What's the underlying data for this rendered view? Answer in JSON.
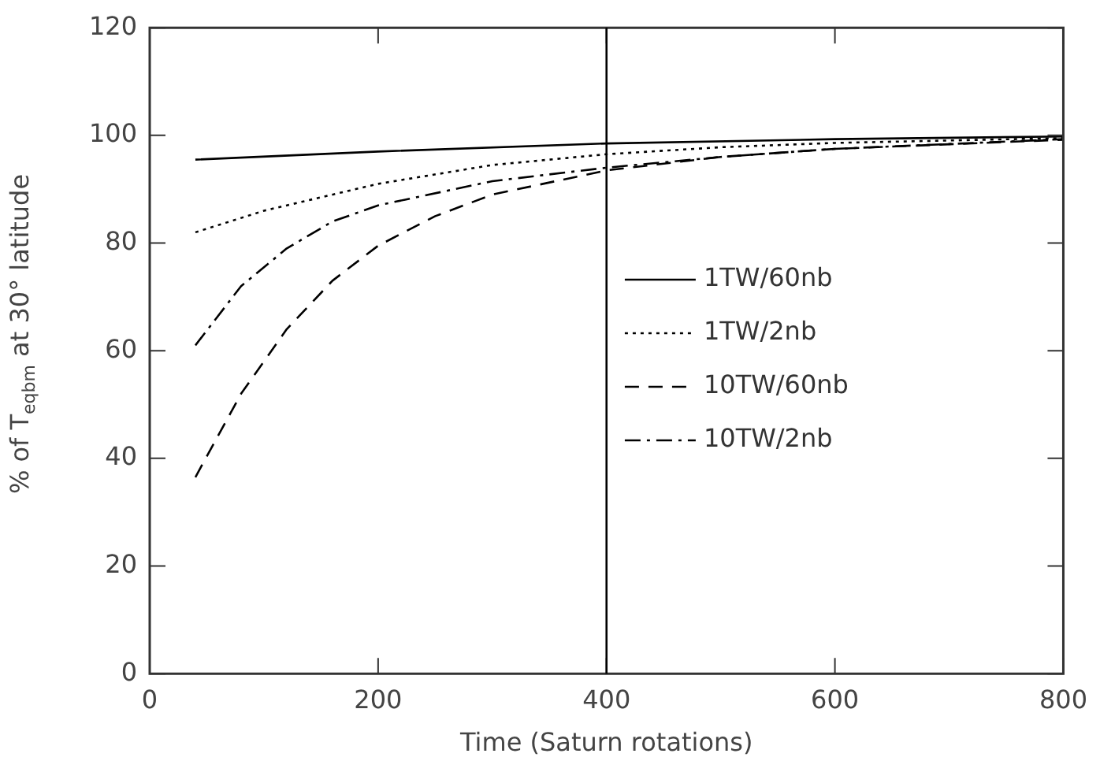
{
  "chart_data": {
    "type": "line",
    "xlabel": "Time (Saturn rotations)",
    "ylabel": "% of T$_{eqbm}$ at 30° latitude",
    "xlim": [
      0,
      800
    ],
    "xticks": [
      0,
      200,
      400,
      600,
      800
    ],
    "ylim": [
      0,
      120
    ],
    "yticks": [
      0,
      20,
      40,
      60,
      80,
      100,
      120
    ],
    "grid": false,
    "legend": "right",
    "marker": "none",
    "ref_lines": [
      {
        "axis": "x",
        "value": 400,
        "color": "#000000"
      }
    ],
    "series": [
      {
        "name": "1TW/60nb",
        "color": "#000000",
        "line_style": "solid",
        "x": [
          40,
          200,
          400,
          600,
          800
        ],
        "values": [
          95.5,
          97,
          98.5,
          99.3,
          99.8
        ]
      },
      {
        "name": "1TW/2nb",
        "color": "#000000",
        "line_style": "dotted",
        "x": [
          40,
          100,
          200,
          300,
          400,
          500,
          600,
          800
        ],
        "values": [
          82,
          86,
          91,
          94.5,
          96.5,
          97.8,
          98.6,
          99.5
        ]
      },
      {
        "name": "10TW/60nb",
        "color": "#000000",
        "line_style": "dashed",
        "x": [
          40,
          80,
          120,
          160,
          200,
          250,
          300,
          400,
          500,
          600,
          800
        ],
        "values": [
          36.5,
          52,
          64,
          73,
          79.5,
          85,
          89,
          93.5,
          96,
          97.5,
          99.2
        ]
      },
      {
        "name": "10TW/2nb",
        "color": "#000000",
        "line_style": "dashdot",
        "x": [
          40,
          80,
          120,
          160,
          200,
          300,
          400,
          500,
          600,
          800
        ],
        "values": [
          61,
          72,
          79,
          84,
          87,
          91.5,
          94,
          96,
          97.5,
          99.3
        ]
      }
    ]
  }
}
